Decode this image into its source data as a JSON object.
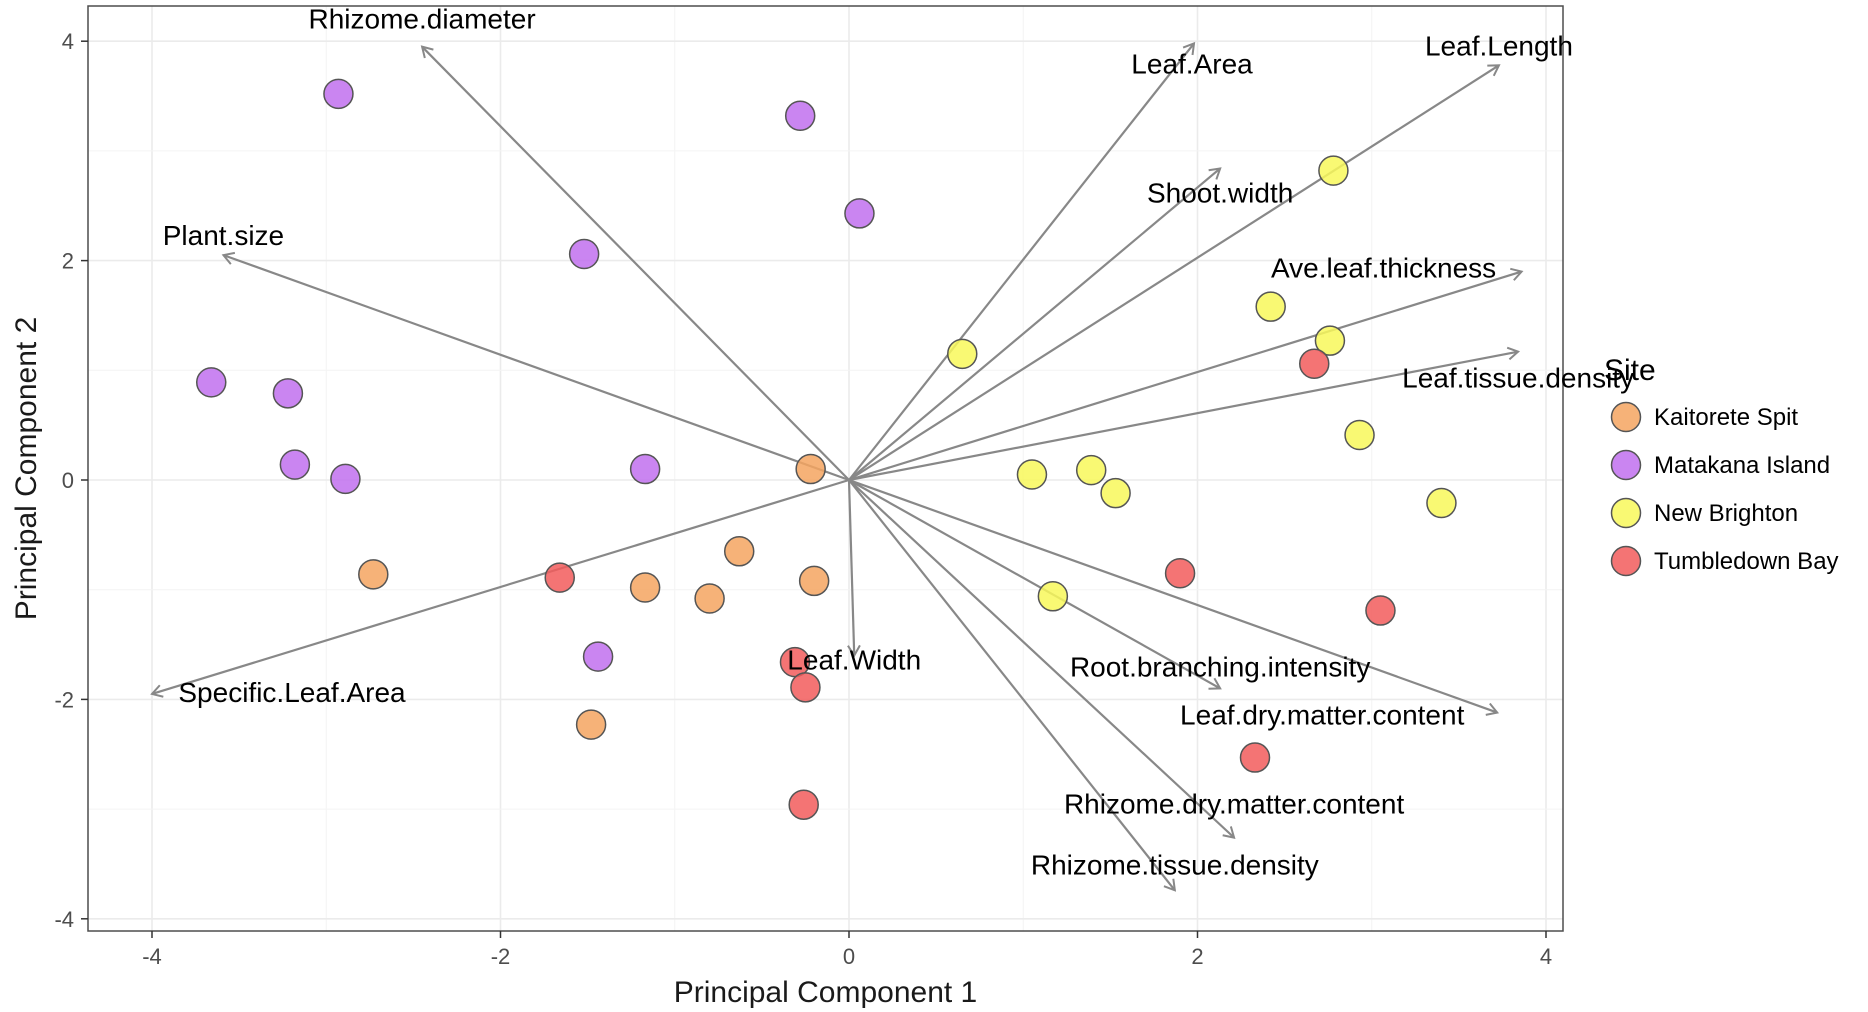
{
  "chart_data": {
    "type": "scatter",
    "xlabel": "Principal Component 1",
    "ylabel": "Principal Component 2",
    "xlim": [
      -4.4,
      4.05
    ],
    "ylim": [
      -4.15,
      4.3
    ],
    "xticks": [
      -4,
      -2,
      0,
      2,
      4
    ],
    "yticks": [
      -4,
      -2,
      0,
      2,
      4
    ],
    "grid": true,
    "legend": {
      "title": "Site",
      "placement": "right",
      "entries": [
        {
          "name": "Kaitorete Spit",
          "color": "#f5a560"
        },
        {
          "name": "Matakana Island",
          "color": "#c170ef"
        },
        {
          "name": "New Brighton",
          "color": "#f8f85a"
        },
        {
          "name": "Tumbledown Bay",
          "color": "#f25c5c"
        }
      ]
    },
    "series": [
      {
        "name": "Kaitorete Spit",
        "color": "#f5a560",
        "points": [
          [
            -0.22,
            0.1
          ],
          [
            -2.73,
            -0.86
          ],
          [
            -0.63,
            -0.65
          ],
          [
            -1.17,
            -0.98
          ],
          [
            -0.8,
            -1.08
          ],
          [
            -0.2,
            -0.92
          ],
          [
            -1.48,
            -2.23
          ]
        ]
      },
      {
        "name": "Matakana Island",
        "color": "#c170ef",
        "points": [
          [
            -2.93,
            3.52
          ],
          [
            -0.28,
            3.32
          ],
          [
            0.06,
            2.43
          ],
          [
            -1.52,
            2.06
          ],
          [
            -3.66,
            0.89
          ],
          [
            -3.22,
            0.79
          ],
          [
            -3.18,
            0.14
          ],
          [
            -2.89,
            0.01
          ],
          [
            -1.17,
            0.1
          ],
          [
            -1.44,
            -1.61
          ]
        ]
      },
      {
        "name": "New Brighton",
        "color": "#f8f85a",
        "points": [
          [
            2.78,
            2.82
          ],
          [
            2.42,
            1.58
          ],
          [
            2.76,
            1.27
          ],
          [
            0.65,
            1.15
          ],
          [
            1.05,
            0.05
          ],
          [
            1.39,
            0.09
          ],
          [
            1.53,
            -0.12
          ],
          [
            2.93,
            0.41
          ],
          [
            3.4,
            -0.21
          ],
          [
            1.17,
            -1.06
          ]
        ]
      },
      {
        "name": "Tumbledown Bay",
        "color": "#f25c5c",
        "points": [
          [
            2.67,
            1.06
          ],
          [
            1.9,
            -0.85
          ],
          [
            3.05,
            -1.19
          ],
          [
            -1.66,
            -0.89
          ],
          [
            -0.31,
            -1.66
          ],
          [
            -0.25,
            -1.89
          ],
          [
            2.33,
            -2.53
          ],
          [
            -0.26,
            -2.96
          ]
        ]
      }
    ],
    "vectors": [
      {
        "name": "Rhizome.diameter",
        "x": -2.45,
        "y": 3.95
      },
      {
        "name": "Leaf.Area",
        "x": 1.98,
        "y": 3.98
      },
      {
        "name": "Leaf.Length",
        "x": 3.73,
        "y": 3.78
      },
      {
        "name": "Shoot.width",
        "x": 2.13,
        "y": 2.84
      },
      {
        "name": "Plant.size",
        "x": -3.59,
        "y": 2.05
      },
      {
        "name": "Ave.leaf.thickness",
        "x": 3.86,
        "y": 1.9
      },
      {
        "name": "Leaf.tissue.density",
        "x": 3.84,
        "y": 1.17
      },
      {
        "name": "Specific.Leaf.Area",
        "x": -4.0,
        "y": -1.95
      },
      {
        "name": "Leaf.Width",
        "x": 0.03,
        "y": -1.6
      },
      {
        "name": "Root.branching.intensity",
        "x": 2.13,
        "y": -1.9
      },
      {
        "name": "Leaf.dry.matter.content",
        "x": 3.72,
        "y": -2.12
      },
      {
        "name": "Rhizome.dry.matter.content",
        "x": 2.21,
        "y": -3.26
      },
      {
        "name": "Rhizome.tissue.density",
        "x": 1.87,
        "y": -3.74
      }
    ]
  }
}
